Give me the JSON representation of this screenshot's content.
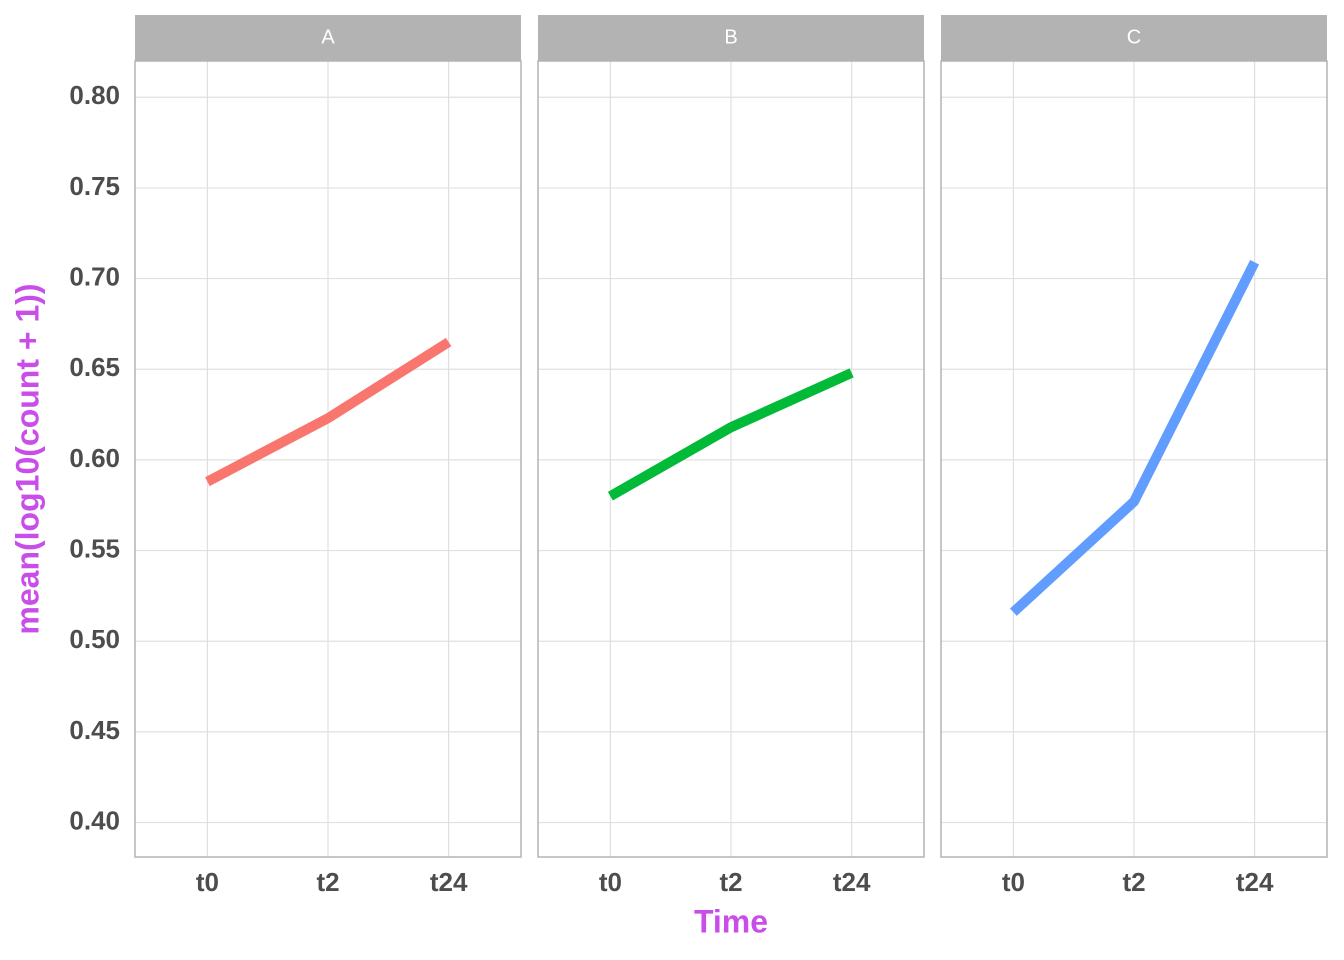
{
  "chart_data": {
    "type": "line",
    "x_label": "Time",
    "y_label": "mean(log10(count + 1))",
    "categories": [
      "t0",
      "t2",
      "t24"
    ],
    "ylim": [
      0.381,
      0.82
    ],
    "yticks": [
      {
        "value": 0.4,
        "label": "0.40"
      },
      {
        "value": 0.45,
        "label": "0.45"
      },
      {
        "value": 0.5,
        "label": "0.50"
      },
      {
        "value": 0.55,
        "label": "0.55"
      },
      {
        "value": 0.6,
        "label": "0.60"
      },
      {
        "value": 0.65,
        "label": "0.65"
      },
      {
        "value": 0.7,
        "label": "0.70"
      },
      {
        "value": 0.75,
        "label": "0.75"
      },
      {
        "value": 0.8,
        "label": "0.80"
      }
    ],
    "grid": true,
    "series": [
      {
        "name": "A",
        "color": "#f8766d",
        "values": [
          0.588,
          0.623,
          0.665
        ]
      },
      {
        "name": "B",
        "color": "#00ba38",
        "values": [
          0.58,
          0.618,
          0.648
        ]
      },
      {
        "name": "C",
        "color": "#619cff",
        "values": [
          0.516,
          0.577,
          0.709
        ]
      }
    ]
  }
}
